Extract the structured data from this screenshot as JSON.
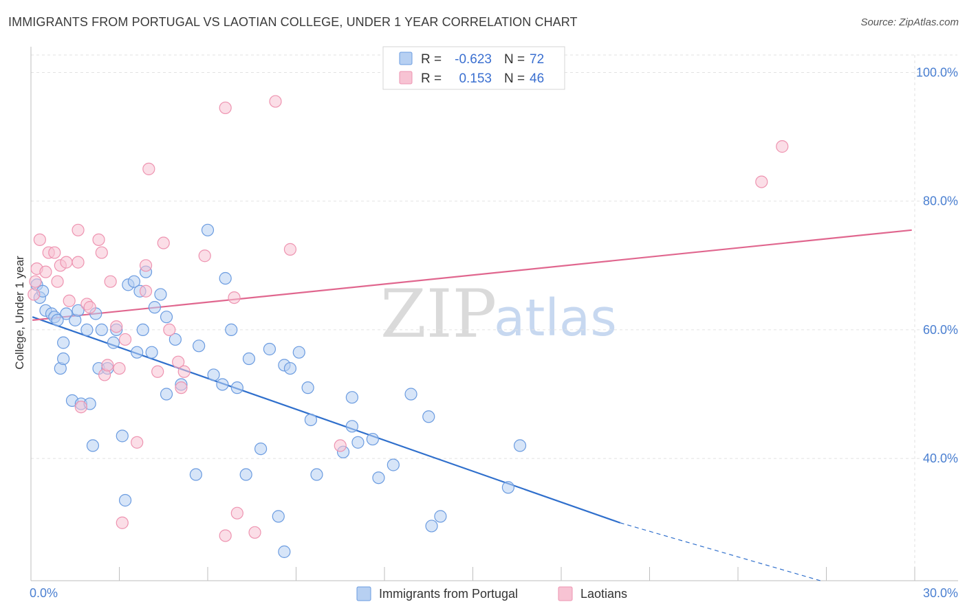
{
  "header": {
    "title": "IMMIGRANTS FROM PORTUGAL VS LAOTIAN COLLEGE, UNDER 1 YEAR CORRELATION CHART",
    "source": "Source: ZipAtlas.com"
  },
  "watermark": {
    "part1": "ZIP",
    "part2": "atlas"
  },
  "legend": {
    "rows": [
      {
        "r_label": "R =",
        "r_value": "-0.623",
        "n_label": "N =",
        "n_value": "72",
        "color": "#a9c8f2"
      },
      {
        "r_label": "R =",
        "r_value": "0.153",
        "n_label": "N =",
        "n_value": "46",
        "color": "#f6b8cc"
      }
    ]
  },
  "chart_data": {
    "type": "scatter",
    "xlabel": "",
    "ylabel": "College, Under 1 year",
    "xlim": [
      0,
      30
    ],
    "ylim": [
      21,
      104
    ],
    "x_ticks": [
      "0.0%",
      "30.0%"
    ],
    "y_ticks": [
      {
        "value": 100,
        "label": "100.0%"
      },
      {
        "value": 80,
        "label": "80.0%"
      },
      {
        "value": 60,
        "label": "60.0%"
      },
      {
        "value": 40,
        "label": "40.0%"
      }
    ],
    "grid": true,
    "legend_placement": "top-center",
    "series": [
      {
        "name": "Immigrants from Portugal",
        "color": "#6a9be0",
        "fill": "#b7d0f2",
        "trend": {
          "x0": 0.05,
          "y0": 62.0,
          "x1": 20.0,
          "y1": 30.0,
          "dash_to_x": 26.8,
          "dash_to_y": 21.0,
          "color": "#2f6fcc"
        },
        "points": [
          [
            0.2,
            67.0
          ],
          [
            0.3,
            65.0
          ],
          [
            0.4,
            66.0
          ],
          [
            0.5,
            63.0
          ],
          [
            0.7,
            62.5
          ],
          [
            0.8,
            62.0
          ],
          [
            1.0,
            54.0
          ],
          [
            1.1,
            55.5
          ],
          [
            1.1,
            58.0
          ],
          [
            1.2,
            62.5
          ],
          [
            1.4,
            49.0
          ],
          [
            1.5,
            61.5
          ],
          [
            1.6,
            63.0
          ],
          [
            1.7,
            48.5
          ],
          [
            1.9,
            60.0
          ],
          [
            2.0,
            48.5
          ],
          [
            2.1,
            42.0
          ],
          [
            2.2,
            62.5
          ],
          [
            2.3,
            54.0
          ],
          [
            2.4,
            60.0
          ],
          [
            2.6,
            54.0
          ],
          [
            2.8,
            58.0
          ],
          [
            2.9,
            60.0
          ],
          [
            3.1,
            43.5
          ],
          [
            3.2,
            33.5
          ],
          [
            3.3,
            67.0
          ],
          [
            3.5,
            67.5
          ],
          [
            3.6,
            56.5
          ],
          [
            3.7,
            66.0
          ],
          [
            3.8,
            60.0
          ],
          [
            3.9,
            69.0
          ],
          [
            4.1,
            56.5
          ],
          [
            4.2,
            63.5
          ],
          [
            4.4,
            65.5
          ],
          [
            4.6,
            62.0
          ],
          [
            4.6,
            50.0
          ],
          [
            4.9,
            58.5
          ],
          [
            5.1,
            51.5
          ],
          [
            5.6,
            37.5
          ],
          [
            5.7,
            57.5
          ],
          [
            6.0,
            75.5
          ],
          [
            6.2,
            53.0
          ],
          [
            6.5,
            51.5
          ],
          [
            6.6,
            68.0
          ],
          [
            6.8,
            60.0
          ],
          [
            7.0,
            51.0
          ],
          [
            7.3,
            37.5
          ],
          [
            7.4,
            55.5
          ],
          [
            7.8,
            41.5
          ],
          [
            8.1,
            57.0
          ],
          [
            8.4,
            31.0
          ],
          [
            8.6,
            25.5
          ],
          [
            8.6,
            54.5
          ],
          [
            8.8,
            54.0
          ],
          [
            9.1,
            56.5
          ],
          [
            9.4,
            51.0
          ],
          [
            9.5,
            46.0
          ],
          [
            9.7,
            37.5
          ],
          [
            10.6,
            41.0
          ],
          [
            10.9,
            45.0
          ],
          [
            10.9,
            49.5
          ],
          [
            11.1,
            42.5
          ],
          [
            11.6,
            43.0
          ],
          [
            11.8,
            37.0
          ],
          [
            12.3,
            39.0
          ],
          [
            12.9,
            50.0
          ],
          [
            13.5,
            46.5
          ],
          [
            13.6,
            29.5
          ],
          [
            13.9,
            31.0
          ],
          [
            16.2,
            35.5
          ],
          [
            16.6,
            42.0
          ],
          [
            0.9,
            61.5
          ]
        ]
      },
      {
        "name": "Laotians",
        "color": "#ee93b0",
        "fill": "#f7c3d3",
        "trend": {
          "x0": 0.05,
          "y0": 61.5,
          "x1": 29.9,
          "y1": 75.5,
          "color": "#e0668e"
        },
        "points": [
          [
            0.1,
            65.5
          ],
          [
            0.2,
            69.5
          ],
          [
            0.3,
            74.0
          ],
          [
            0.5,
            69.0
          ],
          [
            0.6,
            72.0
          ],
          [
            0.8,
            72.0
          ],
          [
            0.9,
            67.5
          ],
          [
            1.0,
            70.0
          ],
          [
            1.2,
            70.5
          ],
          [
            1.3,
            64.5
          ],
          [
            1.6,
            70.5
          ],
          [
            1.6,
            75.5
          ],
          [
            1.7,
            48.0
          ],
          [
            1.9,
            64.0
          ],
          [
            2.0,
            63.5
          ],
          [
            2.3,
            74.0
          ],
          [
            2.4,
            72.0
          ],
          [
            2.5,
            53.0
          ],
          [
            2.6,
            54.5
          ],
          [
            2.7,
            67.5
          ],
          [
            2.9,
            60.5
          ],
          [
            3.0,
            54.0
          ],
          [
            3.1,
            30.0
          ],
          [
            3.2,
            58.5
          ],
          [
            3.6,
            42.5
          ],
          [
            3.9,
            66.0
          ],
          [
            3.9,
            70.0
          ],
          [
            4.0,
            85.0
          ],
          [
            4.3,
            53.5
          ],
          [
            4.5,
            73.5
          ],
          [
            4.7,
            60.0
          ],
          [
            5.0,
            55.0
          ],
          [
            5.1,
            51.0
          ],
          [
            5.2,
            53.5
          ],
          [
            5.9,
            71.5
          ],
          [
            6.6,
            28.0
          ],
          [
            6.6,
            94.5
          ],
          [
            6.9,
            65.0
          ],
          [
            7.0,
            31.5
          ],
          [
            7.6,
            28.5
          ],
          [
            8.3,
            95.5
          ],
          [
            8.8,
            72.5
          ],
          [
            10.5,
            42.0
          ],
          [
            24.8,
            83.0
          ],
          [
            25.5,
            88.5
          ],
          [
            0.15,
            67.5
          ]
        ]
      }
    ]
  }
}
